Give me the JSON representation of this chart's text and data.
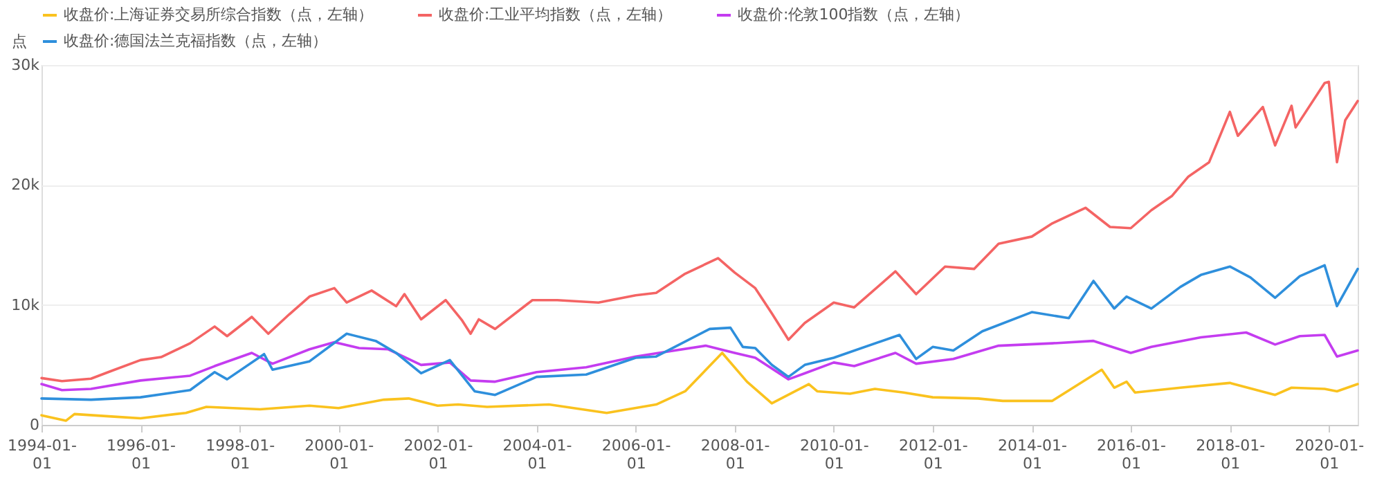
{
  "chart_data": {
    "type": "line",
    "ylabel": "点",
    "legend": "top",
    "grid": "y",
    "marker": "none",
    "line_style": "solid",
    "xlim": [
      "1994-01-01",
      "2020-08-01"
    ],
    "xticks": [
      {
        "value": "1994-01-01",
        "label": "1994-01-01"
      },
      {
        "value": "1996-01-01",
        "label": "1996-01-01"
      },
      {
        "value": "1998-01-01",
        "label": "1998-01-01"
      },
      {
        "value": "2000-01-01",
        "label": "2000-01-01"
      },
      {
        "value": "2002-01-01",
        "label": "2002-01-01"
      },
      {
        "value": "2004-01-01",
        "label": "2004-01-01"
      },
      {
        "value": "2006-01-01",
        "label": "2006-01-01"
      },
      {
        "value": "2008-01-01",
        "label": "2008-01-01"
      },
      {
        "value": "2010-01-01",
        "label": "2010-01-01"
      },
      {
        "value": "2012-01-01",
        "label": "2012-01-01"
      },
      {
        "value": "2014-01-01",
        "label": "2014-01-01"
      },
      {
        "value": "2016-01-01",
        "label": "2016-01-01"
      },
      {
        "value": "2018-01-01",
        "label": "2018-01-01"
      },
      {
        "value": "2020-01-01",
        "label": "2020-01-01"
      }
    ],
    "ylim": [
      0,
      30000
    ],
    "yticks": [
      0,
      {
        "value": 10000,
        "label": "10k"
      },
      {
        "value": 20000,
        "label": "20k"
      },
      {
        "value": 30000,
        "label": "30k"
      }
    ],
    "series": [
      {
        "name": "收盘价:上海证券交易所综合指数（点，左轴）",
        "color": "#fac21e",
        "x": [
          "1994-01",
          "1994-07",
          "1994-09",
          "1995-06",
          "1996-01",
          "1996-12",
          "1997-05",
          "1998-06",
          "1999-06",
          "2000-01",
          "2000-12",
          "2001-06",
          "2002-01",
          "2002-06",
          "2003-01",
          "2004-04",
          "2005-06",
          "2006-06",
          "2007-01",
          "2007-10",
          "2008-04",
          "2008-10",
          "2009-07",
          "2009-09",
          "2010-05",
          "2010-11",
          "2011-06",
          "2012-01",
          "2012-12",
          "2013-06",
          "2014-06",
          "2015-06",
          "2015-09",
          "2015-12",
          "2016-02",
          "2017-01",
          "2018-01",
          "2018-12",
          "2019-04",
          "2019-12",
          "2020-03",
          "2020-08"
        ],
        "values": [
          800,
          350,
          900,
          700,
          550,
          1000,
          1500,
          1300,
          1600,
          1400,
          2100,
          2200,
          1600,
          1700,
          1500,
          1700,
          1000,
          1700,
          2800,
          6000,
          3600,
          1800,
          3400,
          2800,
          2600,
          3000,
          2700,
          2300,
          2200,
          2000,
          2000,
          4600,
          3100,
          3600,
          2700,
          3100,
          3500,
          2500,
          3100,
          3000,
          2800,
          3400
        ]
      },
      {
        "name": "收盘价:工业平均指数（点，左轴）",
        "color": "#f46464",
        "x": [
          "1994-01",
          "1994-06",
          "1995-01",
          "1995-06",
          "1996-01",
          "1996-06",
          "1997-01",
          "1997-07",
          "1997-10",
          "1998-04",
          "1998-08",
          "1999-01",
          "1999-06",
          "1999-12",
          "2000-03",
          "2000-09",
          "2001-03",
          "2001-05",
          "2001-09",
          "2002-03",
          "2002-07",
          "2002-09",
          "2002-11",
          "2003-03",
          "2003-12",
          "2004-06",
          "2005-04",
          "2006-01",
          "2006-06",
          "2007-01",
          "2007-09",
          "2008-01",
          "2008-06",
          "2008-10",
          "2009-02",
          "2009-06",
          "2010-01",
          "2010-06",
          "2011-04",
          "2011-09",
          "2012-04",
          "2012-11",
          "2013-05",
          "2014-01",
          "2014-06",
          "2015-02",
          "2015-08",
          "2016-01",
          "2016-06",
          "2016-11",
          "2017-03",
          "2017-08",
          "2018-01",
          "2018-03",
          "2018-09",
          "2018-12",
          "2019-04",
          "2019-05",
          "2019-12",
          "2020-01",
          "2020-03",
          "2020-05",
          "2020-08"
        ],
        "values": [
          3900,
          3650,
          3850,
          4500,
          5400,
          5650,
          6800,
          8200,
          7400,
          9000,
          7600,
          9200,
          10700,
          11400,
          10200,
          11200,
          9900,
          10900,
          8800,
          10400,
          8700,
          7600,
          8800,
          8000,
          10400,
          10400,
          10200,
          10800,
          11000,
          12600,
          13900,
          12700,
          11400,
          9300,
          7100,
          8500,
          10200,
          9800,
          12800,
          10900,
          13200,
          13000,
          15100,
          15700,
          16800,
          18100,
          16500,
          16400,
          17900,
          19100,
          20700,
          21900,
          26100,
          24100,
          26500,
          23300,
          26600,
          24800,
          28500,
          28600,
          21900,
          25400,
          27000
        ]
      },
      {
        "name": "收盘价:伦敦100指数（点，左轴）",
        "color": "#c43cf0",
        "x": [
          "1994-01",
          "1994-06",
          "1995-01",
          "1996-01",
          "1997-01",
          "1997-07",
          "1998-04",
          "1998-09",
          "1999-06",
          "1999-12",
          "2000-06",
          "2001-01",
          "2001-09",
          "2002-04",
          "2002-09",
          "2003-03",
          "2004-01",
          "2005-01",
          "2006-01",
          "2007-06",
          "2008-01",
          "2008-06",
          "2009-02",
          "2009-06",
          "2010-01",
          "2010-06",
          "2011-04",
          "2011-09",
          "2012-06",
          "2013-05",
          "2014-06",
          "2015-04",
          "2016-01",
          "2016-06",
          "2017-06",
          "2018-05",
          "2018-12",
          "2019-06",
          "2019-12",
          "2020-03",
          "2020-08"
        ],
        "values": [
          3400,
          2900,
          3000,
          3700,
          4100,
          4900,
          6000,
          5100,
          6300,
          6900,
          6400,
          6300,
          5000,
          5200,
          3700,
          3600,
          4400,
          4800,
          5700,
          6600,
          6000,
          5600,
          3800,
          4300,
          5200,
          4900,
          6000,
          5100,
          5500,
          6600,
          6800,
          7000,
          6000,
          6500,
          7300,
          7700,
          6700,
          7400,
          7500,
          5700,
          6200
        ]
      },
      {
        "name": "收盘价:德国法兰克福指数（点，左轴）",
        "color": "#2e8fdc",
        "x": [
          "1994-01",
          "1995-01",
          "1996-01",
          "1997-01",
          "1997-07",
          "1997-10",
          "1998-07",
          "1998-09",
          "1999-06",
          "2000-03",
          "2000-10",
          "2001-03",
          "2001-09",
          "2002-04",
          "2002-10",
          "2003-03",
          "2004-01",
          "2005-01",
          "2006-01",
          "2006-06",
          "2007-07",
          "2007-12",
          "2008-03",
          "2008-06",
          "2008-10",
          "2009-02",
          "2009-06",
          "2010-01",
          "2011-05",
          "2011-09",
          "2012-01",
          "2012-06",
          "2013-01",
          "2014-01",
          "2014-10",
          "2015-04",
          "2015-09",
          "2015-12",
          "2016-06",
          "2017-01",
          "2017-06",
          "2018-01",
          "2018-06",
          "2018-12",
          "2019-06",
          "2019-12",
          "2020-03",
          "2020-08"
        ],
        "values": [
          2200,
          2100,
          2300,
          2900,
          4400,
          3800,
          5900,
          4600,
          5300,
          7600,
          7000,
          6000,
          4300,
          5400,
          2800,
          2500,
          4000,
          4200,
          5600,
          5700,
          8000,
          8100,
          6500,
          6400,
          5000,
          4000,
          5000,
          5600,
          7500,
          5500,
          6500,
          6200,
          7800,
          9400,
          8900,
          12000,
          9700,
          10700,
          9700,
          11500,
          12500,
          13200,
          12300,
          10600,
          12400,
          13300,
          9900,
          13000
        ]
      }
    ]
  }
}
